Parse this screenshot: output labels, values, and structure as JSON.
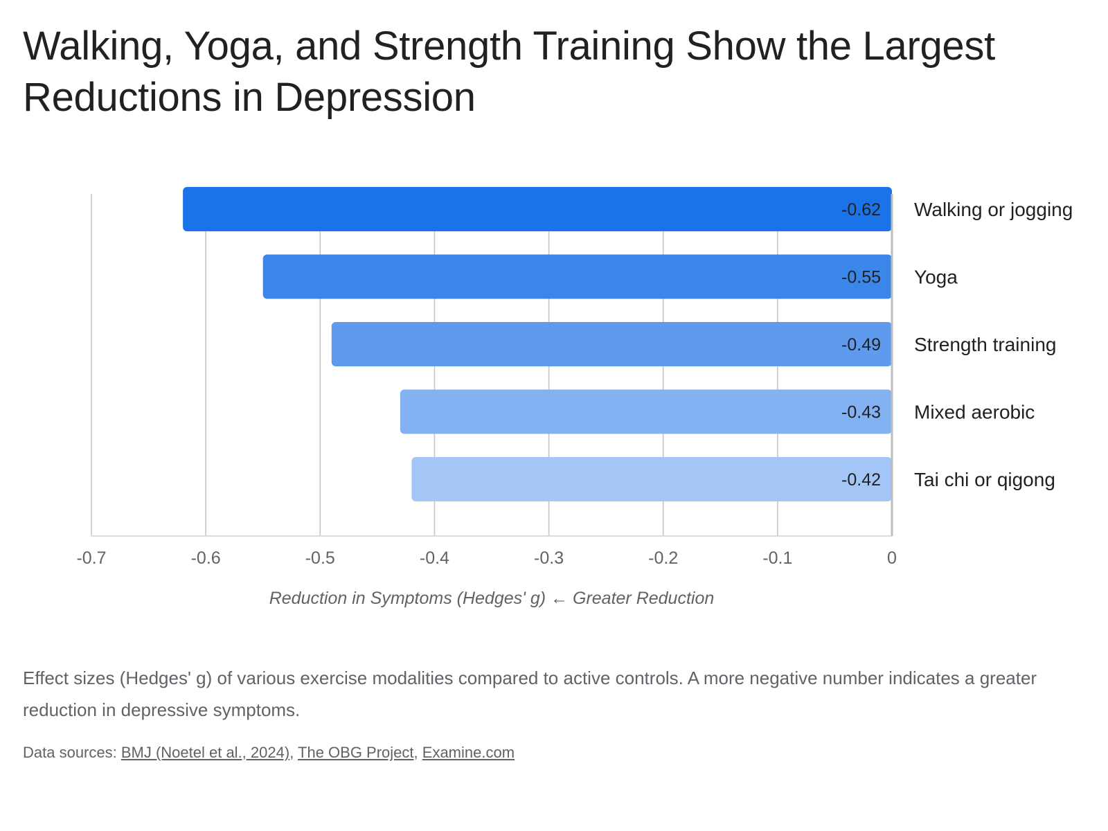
{
  "title": "Walking, Yoga, and Strength Training Show the Largest Reductions in Depression",
  "caption": "Effect sizes (Hedges' g) of various exercise modalities compared to active controls. A more negative number indicates a greater reduction in depressive symptoms.",
  "sources": {
    "prefix": "Data sources: ",
    "links": [
      {
        "label": "BMJ (Noetel et al., 2024)"
      },
      {
        "label": "The OBG Project"
      },
      {
        "label": "Examine.com"
      }
    ],
    "separator": ", "
  },
  "chart_data": {
    "type": "bar",
    "orientation": "horizontal",
    "categories": [
      "Walking or jogging",
      "Yoga",
      "Strength training",
      "Mixed aerobic",
      "Tai chi or qigong"
    ],
    "values": [
      -0.62,
      -0.55,
      -0.49,
      -0.43,
      -0.42
    ],
    "value_labels": [
      "-0.62",
      "-0.55",
      "-0.49",
      "-0.43",
      "-0.42"
    ],
    "xlabel": "Reduction in Symptoms (Hedges' g) ← Greater Reduction",
    "ylabel": "",
    "xlim": [
      -0.7,
      0
    ],
    "xticks": [
      -0.7,
      -0.6,
      -0.5,
      -0.4,
      -0.3,
      -0.2,
      -0.1,
      0
    ],
    "xtick_labels": [
      "-0.7",
      "-0.6",
      "-0.5",
      "-0.4",
      "-0.3",
      "-0.2",
      "-0.1",
      "0"
    ],
    "category_labels_side": "right",
    "grid": true,
    "colors": [
      "#1a73e8",
      "#3b86e9",
      "#5e9bef",
      "#83b2f3",
      "#a3c6f6"
    ],
    "legend": "none"
  }
}
